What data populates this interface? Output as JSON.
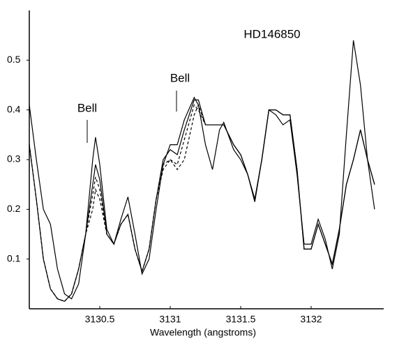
{
  "chart_data": {
    "type": "line",
    "title": "HD146850",
    "x_label": "Wavelength (angstroms)",
    "annotations": [
      "Bell",
      "Bell"
    ],
    "x": [
      3130.0,
      3130.05,
      3130.1,
      3130.15,
      3130.2,
      3130.25,
      3130.3,
      3130.35,
      3130.4,
      3130.45,
      3130.47,
      3130.5,
      3130.55,
      3130.6,
      3130.65,
      3130.7,
      3130.75,
      3130.8,
      3130.85,
      3130.9,
      3130.95,
      3131.0,
      3131.05,
      3131.1,
      3131.17,
      3131.2,
      3131.25,
      3131.3,
      3131.35,
      3131.38,
      3131.45,
      3131.5,
      3131.55,
      3131.6,
      3131.65,
      3131.7,
      3131.75,
      3131.8,
      3131.85,
      3131.9,
      3131.95,
      3132.0,
      3132.05,
      3132.1,
      3132.15,
      3132.2,
      3132.25,
      3132.3,
      3132.35,
      3132.4,
      3132.45
    ],
    "series": [
      {
        "color": "#000000",
        "dash": false,
        "values": [
          0.41,
          0.3,
          0.2,
          0.17,
          0.08,
          0.03,
          0.02,
          0.05,
          0.15,
          0.3,
          0.345,
          0.29,
          0.16,
          0.13,
          0.18,
          0.225,
          0.15,
          0.07,
          0.1,
          0.2,
          0.29,
          0.33,
          0.33,
          0.38,
          0.425,
          0.41,
          0.33,
          0.28,
          0.36,
          0.375,
          0.32,
          0.3,
          0.27,
          0.215,
          0.3,
          0.4,
          0.39,
          0.37,
          0.38,
          0.27,
          0.13,
          0.13,
          0.18,
          0.14,
          0.08,
          0.15,
          0.35,
          0.54,
          0.45,
          0.3,
          0.2
        ]
      },
      {
        "color": "#000000",
        "dash": false,
        "values": [
          0.33,
          0.22,
          0.1,
          0.04,
          0.02,
          0.015,
          0.03,
          0.08,
          0.15,
          0.25,
          0.29,
          0.26,
          0.15,
          0.13,
          0.17,
          0.19,
          0.12,
          0.075,
          0.12,
          0.22,
          0.3,
          0.32,
          0.31,
          0.36,
          0.42,
          0.42,
          0.37,
          0.37,
          0.37,
          0.37,
          0.33,
          0.31,
          0.27,
          0.22,
          0.3,
          0.4,
          0.4,
          0.39,
          0.39,
          0.28,
          0.12,
          0.12,
          0.17,
          0.13,
          0.09,
          0.16,
          0.25,
          0.3,
          0.36,
          0.3,
          0.25
        ]
      },
      {
        "color": "#000000",
        "dash": true,
        "values": [
          0.33,
          0.22,
          0.1,
          0.04,
          0.02,
          0.015,
          0.03,
          0.08,
          0.15,
          0.23,
          0.265,
          0.24,
          0.15,
          0.13,
          0.17,
          0.19,
          0.12,
          0.075,
          0.12,
          0.22,
          0.29,
          0.3,
          0.29,
          0.34,
          0.41,
          0.4,
          0.37,
          0.37,
          0.37,
          0.37,
          0.33,
          0.31,
          0.27,
          0.22,
          0.3,
          0.4,
          0.4,
          0.39,
          0.39,
          0.28,
          0.12,
          0.12,
          0.17,
          0.13,
          0.09,
          0.16,
          0.25,
          0.3,
          0.36,
          0.3,
          0.25
        ]
      },
      {
        "color": "#000000",
        "dash": true,
        "values": [
          0.33,
          0.22,
          0.1,
          0.04,
          0.02,
          0.015,
          0.03,
          0.08,
          0.15,
          0.2,
          0.24,
          0.22,
          0.15,
          0.13,
          0.17,
          0.19,
          0.12,
          0.075,
          0.12,
          0.22,
          0.28,
          0.3,
          0.28,
          0.3,
          0.39,
          0.41,
          0.37,
          0.37,
          0.37,
          0.37,
          0.33,
          0.31,
          0.27,
          0.22,
          0.3,
          0.4,
          0.4,
          0.39,
          0.39,
          0.28,
          0.12,
          0.12,
          0.17,
          0.13,
          0.09,
          0.16,
          0.25,
          0.3,
          0.36,
          0.3,
          0.25
        ]
      }
    ],
    "xlim": [
      3130.0,
      3132.5
    ],
    "xticks": [
      3130.5,
      3131,
      3131.5,
      3132
    ],
    "ylim": [
      0,
      0.6
    ],
    "yticks": [
      0.1,
      0.2,
      0.3,
      0.4,
      0.5
    ]
  }
}
